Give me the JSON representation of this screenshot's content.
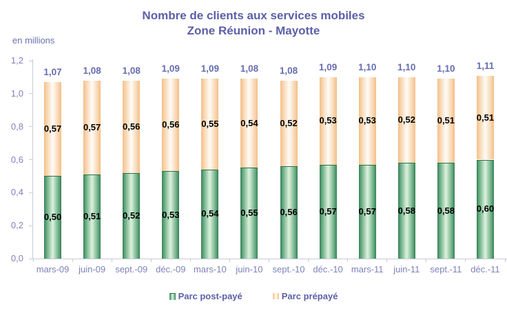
{
  "title": {
    "line1": "Nombre de clients aux services mobiles",
    "line2": "Zone Réunion - Mayotte"
  },
  "axis_note": "en millions",
  "legend": [
    {
      "label": "Parc post-payé",
      "series": "post"
    },
    {
      "label": "Parc prépayé",
      "series": "pre"
    }
  ],
  "colors": {
    "title": "#5b5fa8",
    "axis_labels": "#7d81ba",
    "total_labels": "#666cb0",
    "segment_labels": "#000000",
    "post_edge": "#377f52",
    "post_center": "#d7efd8",
    "pre_edge": "#f3bd86",
    "pre_center": "#fefaf3",
    "axis_line": "#c6cbd6"
  },
  "chart_data": {
    "type": "bar",
    "stacked": true,
    "title": "Nombre de clients aux services mobiles Zone Réunion - Mayotte",
    "unit": "en millions",
    "categories": [
      "mars-09",
      "juin-09",
      "sept.-09",
      "déc.-09",
      "mars-10",
      "juin-10",
      "sept.-10",
      "déc.-10",
      "mars-11",
      "juin-11",
      "sept.-11",
      "déc.-11"
    ],
    "series": [
      {
        "name": "Parc post-payé",
        "values": [
          0.5,
          0.51,
          0.52,
          0.53,
          0.54,
          0.55,
          0.56,
          0.57,
          0.57,
          0.58,
          0.58,
          0.6
        ],
        "labels": [
          "0,50",
          "0,51",
          "0,52",
          "0,53",
          "0,54",
          "0,55",
          "0,56",
          "0,57",
          "0,57",
          "0,58",
          "0,58",
          "0,60"
        ]
      },
      {
        "name": "Parc prépayé",
        "values": [
          0.57,
          0.57,
          0.56,
          0.56,
          0.55,
          0.54,
          0.52,
          0.53,
          0.53,
          0.52,
          0.51,
          0.51
        ],
        "labels": [
          "0,57",
          "0,57",
          "0,56",
          "0,56",
          "0,55",
          "0,54",
          "0,52",
          "0,53",
          "0,53",
          "0,52",
          "0,51",
          "0,51"
        ]
      }
    ],
    "totals": [
      1.07,
      1.08,
      1.08,
      1.09,
      1.09,
      1.08,
      1.08,
      1.09,
      1.1,
      1.1,
      1.1,
      1.11
    ],
    "total_labels": [
      "1,07",
      "1,08",
      "1,08",
      "1,09",
      "1,09",
      "1,08",
      "1,08",
      "1,09",
      "1,10",
      "1,10",
      "1,10",
      "1,11"
    ],
    "ylim": [
      0,
      1.2
    ],
    "yticks": [
      0,
      0.2,
      0.4,
      0.6,
      0.8,
      1.0,
      1.2
    ],
    "ytick_labels": [
      "0,0",
      "0,2",
      "0,4",
      "0,6",
      "0,8",
      "1,0",
      "1,2"
    ],
    "xlabel": "",
    "ylabel": "en millions",
    "grid": false,
    "legend_position": "bottom"
  }
}
